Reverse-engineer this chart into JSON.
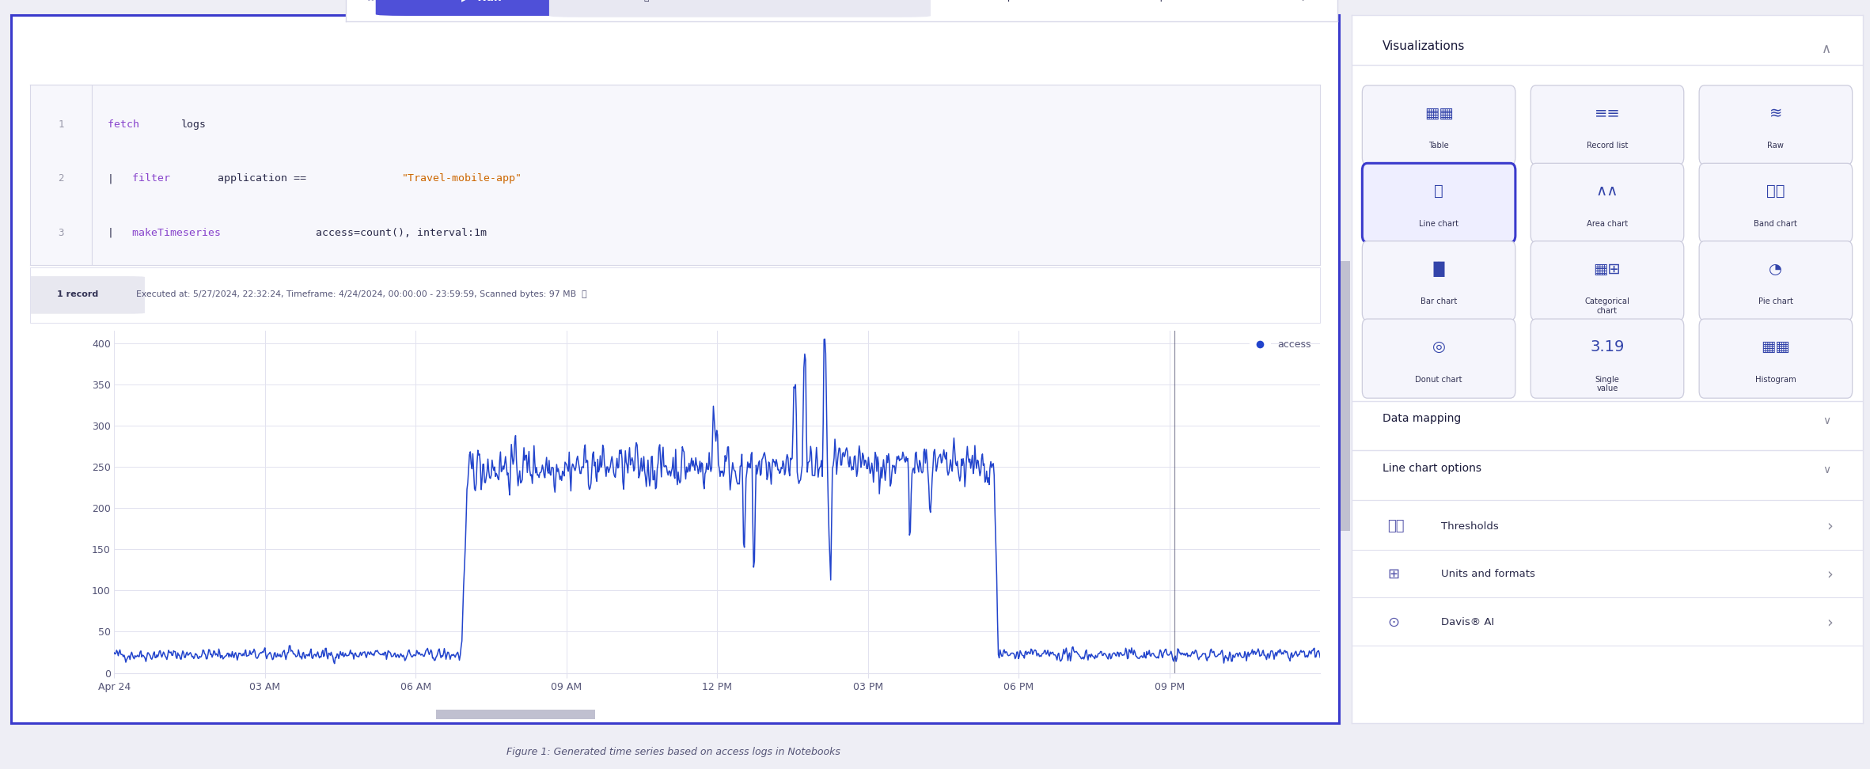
{
  "fig_width": 23.63,
  "fig_height": 9.72,
  "fig_bg": "#eeeef5",
  "main_bg": "#ffffff",
  "main_border": "#3a3acc",
  "toolbar_bg": "#ffffff",
  "toolbar_border": "#d8d8e8",
  "code_area_bg": "#f7f7fc",
  "code_area_border": "#d8d8e8",
  "chart_bg": "#ffffff",
  "grid_color": "#e2e2ef",
  "line_color": "#2244cc",
  "axis_color": "#555577",
  "right_bg": "#ffffff",
  "right_border": "#e0e0ee",
  "run_btn_bg": "#4f50d8",
  "run_btn_fg": "#ffffff",
  "badge_bg": "#e8e8f0",
  "badge_fg": "#333355",
  "keyword_color": "#8844cc",
  "string_color": "#cc6600",
  "plain_color": "#2a2a4a",
  "linenum_color": "#9999aa",
  "toolbar_text": "#333355",
  "selected_chart_border": "#3a3acc",
  "selected_chart_bg": "#eeeeff",
  "unselected_chart_border": "#ccccdd",
  "unselected_chart_bg": "#f5f5fc",
  "section_title_color": "#1a1a3a",
  "divider_color": "#e0e0ee",
  "option_text_color": "#2a2a4a",
  "option_icon_color": "#5555aa",
  "chevron_color": "#888899",
  "legend_color": "#2244cc",
  "scroll_bar_color": "#c0c0d0",
  "noise_seed": 42,
  "ylim": [
    0,
    415
  ],
  "xlim": [
    0,
    24
  ],
  "y_ticks": [
    0,
    50,
    100,
    150,
    200,
    250,
    300,
    350,
    400
  ],
  "x_ticks": [
    0,
    3,
    6,
    9,
    12,
    15,
    18,
    21
  ],
  "x_labels": [
    "Apr 24",
    "03 AM",
    "06 AM",
    "09 AM",
    "12 PM",
    "03 PM",
    "06 PM",
    "09 PM"
  ],
  "caption": "Figure 1: Generated time series based on access logs in Notebooks"
}
